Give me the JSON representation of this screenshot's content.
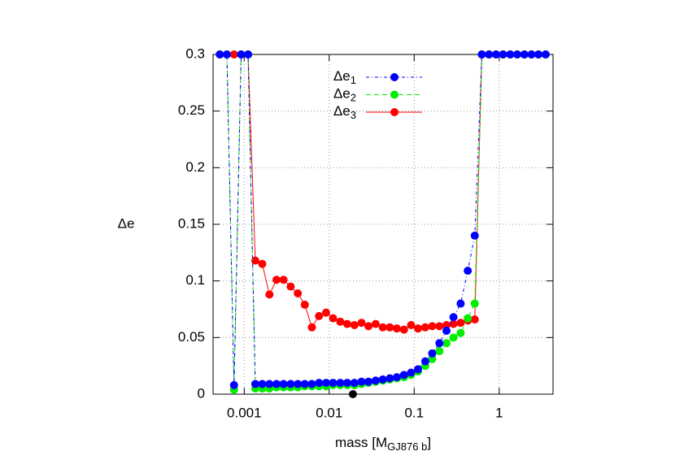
{
  "chart_data": {
    "type": "line",
    "xlabel": "mass [MGJ876 b]",
    "ylabel": "Δe",
    "x": [
      0.000516,
      0.000625,
      0.000759,
      0.000919,
      0.00111,
      0.00135,
      0.00163,
      0.00198,
      0.0024,
      0.0029,
      0.00352,
      0.00427,
      0.00516,
      0.00625,
      0.00759,
      0.00919,
      0.0111,
      0.0135,
      0.0163,
      0.0198,
      0.024,
      0.029,
      0.0352,
      0.0427,
      0.0516,
      0.0625,
      0.0759,
      0.0919,
      0.111,
      0.135,
      0.163,
      0.198,
      0.24,
      0.29,
      0.352,
      0.427,
      0.516,
      0.625,
      0.759,
      0.919,
      1.11,
      1.35,
      1.63,
      1.98,
      2.4,
      2.9,
      3.52
    ],
    "series": [
      {
        "name": "Δe3",
        "color": "#ff0000",
        "dash": "none",
        "values": [
          0.3,
          0.3,
          0.3,
          0.3,
          0.3,
          0.118,
          0.115,
          0.088,
          0.101,
          0.101,
          0.095,
          0.089,
          0.079,
          0.059,
          0.069,
          0.072,
          0.067,
          0.064,
          0.062,
          0.061,
          0.063,
          0.06,
          0.062,
          0.059,
          0.059,
          0.058,
          0.057,
          0.061,
          0.058,
          0.059,
          0.06,
          0.06,
          0.061,
          0.062,
          0.063,
          0.065,
          0.066,
          0.3,
          0.3,
          0.3,
          0.3,
          0.3,
          0.3,
          0.3,
          0.3,
          0.3,
          0.3
        ]
      },
      {
        "name": "Δe2",
        "color": "#00ee00",
        "dash": "6 4",
        "values": [
          0.3,
          0.3,
          0.004,
          0.3,
          0.3,
          0.005,
          0.005,
          0.005,
          0.006,
          0.006,
          0.006,
          0.006,
          0.007,
          0.007,
          0.007,
          0.007,
          0.008,
          0.008,
          0.008,
          0.008,
          0.009,
          0.01,
          0.011,
          0.012,
          0.013,
          0.014,
          0.015,
          0.017,
          0.02,
          0.025,
          0.031,
          0.038,
          0.045,
          0.05,
          0.054,
          0.067,
          0.08,
          0.3,
          0.3,
          0.3,
          0.3,
          0.3,
          0.3,
          0.3,
          0.3,
          0.3,
          0.3
        ]
      },
      {
        "name": "Δe1",
        "color": "#0000ff",
        "dash": "4 3 1 3",
        "values": [
          0.3,
          0.3,
          0.008,
          0.3,
          0.3,
          0.009,
          0.009,
          0.009,
          0.009,
          0.009,
          0.009,
          0.009,
          0.009,
          0.009,
          0.01,
          0.01,
          0.01,
          0.01,
          0.01,
          0.01,
          0.011,
          0.011,
          0.012,
          0.013,
          0.014,
          0.015,
          0.017,
          0.019,
          0.022,
          0.029,
          0.036,
          0.045,
          0.056,
          0.068,
          0.08,
          0.109,
          0.14,
          0.3,
          0.3,
          0.3,
          0.3,
          0.3,
          0.3,
          0.3,
          0.3,
          0.3,
          0.3
        ]
      }
    ],
    "highlight": {
      "x": 0.019,
      "y": 0,
      "color": "#000000"
    },
    "xlim": [
      0.00043,
      4.3
    ],
    "ylim": [
      0,
      0.3
    ],
    "log_x": true,
    "xticks": [
      0.001,
      0.01,
      0.1,
      1
    ],
    "yticks": [
      0,
      0.05,
      0.1,
      0.15,
      0.2,
      0.25,
      0.3
    ],
    "grid": true,
    "legend": "top-center"
  }
}
